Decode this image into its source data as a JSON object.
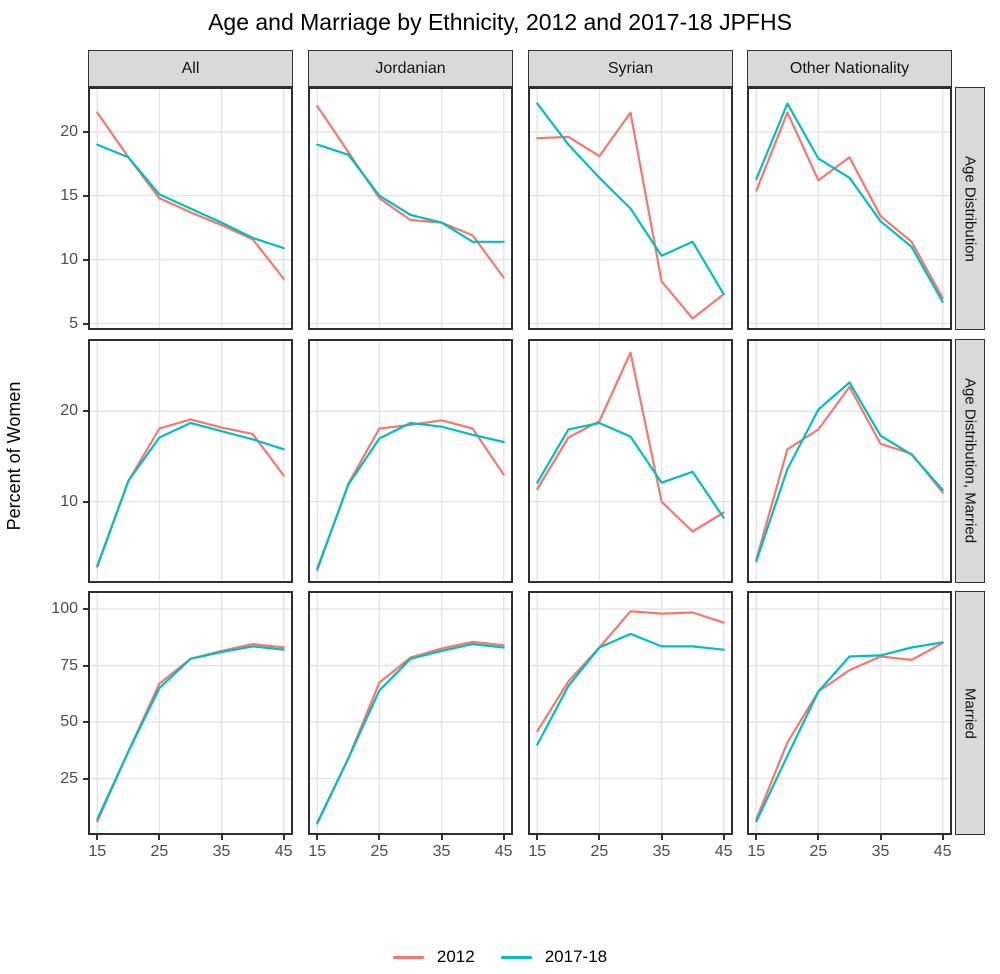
{
  "title": "Age and Marriage by Ethnicity, 2012 and 2017-18 JPFHS",
  "y_axis_label": "Percent of Women",
  "facets": {
    "columns": [
      "All",
      "Jordanian",
      "Syrian",
      "Other Nationality"
    ],
    "rows": [
      "Age Distribution",
      "Age Distribution, Married",
      "Married"
    ]
  },
  "legend": {
    "series": [
      {
        "label": "2012",
        "color": "#F8766D"
      },
      {
        "label": "2017-18",
        "color": "#00BFC4"
      }
    ]
  },
  "colors": {
    "grid": "#E4E4E4",
    "panel_border": "#2E2E2E",
    "strip_bg": "#D9D9D9",
    "tick_text": "#4D4D4D"
  },
  "chart_data": {
    "type": "line",
    "x": [
      15,
      20,
      25,
      30,
      35,
      40,
      45
    ],
    "x_ticks": [
      15,
      25,
      35,
      45
    ],
    "xlabel": "",
    "ylabel": "Percent of Women",
    "legend_position": "bottom",
    "rows": [
      {
        "facet": "Age Distribution",
        "ylim": [
          4.5,
          23.5
        ],
        "y_ticks": [
          5,
          10,
          15,
          20
        ],
        "panels": [
          {
            "column": "All",
            "series": [
              {
                "name": "2012",
                "values": [
                  21.5,
                  18.0,
                  14.8,
                  13.7,
                  12.7,
                  11.6,
                  8.5
                ]
              },
              {
                "name": "2017-18",
                "values": [
                  19.0,
                  18.0,
                  15.1,
                  14.0,
                  12.9,
                  11.7,
                  10.9
                ]
              }
            ]
          },
          {
            "column": "Jordanian",
            "series": [
              {
                "name": "2012",
                "values": [
                  22.0,
                  18.4,
                  14.8,
                  13.1,
                  12.9,
                  11.9,
                  8.6
                ]
              },
              {
                "name": "2017-18",
                "values": [
                  19.0,
                  18.2,
                  15.0,
                  13.5,
                  12.9,
                  11.4,
                  11.4
                ]
              }
            ]
          },
          {
            "column": "Syrian",
            "series": [
              {
                "name": "2012",
                "values": [
                  19.5,
                  19.6,
                  18.1,
                  21.5,
                  8.3,
                  5.4,
                  7.3
                ]
              },
              {
                "name": "2017-18",
                "values": [
                  22.2,
                  19.0,
                  16.4,
                  14.0,
                  10.3,
                  11.4,
                  7.3
                ]
              }
            ]
          },
          {
            "column": "Other Nationality",
            "series": [
              {
                "name": "2012",
                "values": [
                  15.4,
                  21.5,
                  16.2,
                  18.0,
                  13.4,
                  11.4,
                  7.0
                ]
              },
              {
                "name": "2017-18",
                "values": [
                  16.3,
                  22.2,
                  17.9,
                  16.4,
                  13.0,
                  11.0,
                  6.7
                ]
              }
            ]
          }
        ]
      },
      {
        "facet": "Age Distribution, Married",
        "ylim": [
          1,
          28
        ],
        "y_ticks": [
          10,
          20
        ],
        "panels": [
          {
            "column": "All",
            "series": [
              {
                "name": "2012",
                "values": [
                  2.8,
                  12.3,
                  18.1,
                  19.1,
                  18.2,
                  17.5,
                  12.9
                ]
              },
              {
                "name": "2017-18",
                "values": [
                  2.9,
                  12.3,
                  17.1,
                  18.7,
                  17.8,
                  16.9,
                  15.8
                ]
              }
            ]
          },
          {
            "column": "Jordanian",
            "series": [
              {
                "name": "2012",
                "values": [
                  2.4,
                  12.0,
                  18.1,
                  18.5,
                  19.0,
                  18.1,
                  13.0
                ]
              },
              {
                "name": "2017-18",
                "values": [
                  2.6,
                  11.9,
                  17.0,
                  18.7,
                  18.3,
                  17.4,
                  16.6
                ]
              }
            ]
          },
          {
            "column": "Syrian",
            "series": [
              {
                "name": "2012",
                "values": [
                  11.4,
                  17.1,
                  18.9,
                  26.5,
                  10.0,
                  6.7,
                  8.8
                ]
              },
              {
                "name": "2017-18",
                "values": [
                  12.1,
                  18.0,
                  18.7,
                  17.2,
                  12.1,
                  13.3,
                  8.2
                ]
              }
            ]
          },
          {
            "column": "Other Nationality",
            "series": [
              {
                "name": "2012",
                "values": [
                  3.6,
                  15.8,
                  18.0,
                  22.7,
                  16.4,
                  15.3,
                  11.0
                ]
              },
              {
                "name": "2017-18",
                "values": [
                  3.4,
                  13.6,
                  20.2,
                  23.2,
                  17.3,
                  15.2,
                  11.3
                ]
              }
            ]
          }
        ]
      },
      {
        "facet": "Married",
        "ylim": [
          0,
          108
        ],
        "y_ticks": [
          25,
          50,
          75,
          100
        ],
        "panels": [
          {
            "column": "All",
            "series": [
              {
                "name": "2012",
                "values": [
                  6,
                  37,
                  67,
                  78,
                  81.5,
                  84.5,
                  83
                ]
              },
              {
                "name": "2017-18",
                "values": [
                  7,
                  37,
                  65,
                  78,
                  81,
                  83.5,
                  82
                ]
              }
            ]
          },
          {
            "column": "Jordanian",
            "series": [
              {
                "name": "2012",
                "values": [
                  5,
                  34,
                  67.5,
                  78.5,
                  82.5,
                  85.5,
                  84
                ]
              },
              {
                "name": "2017-18",
                "values": [
                  5.5,
                  34,
                  64,
                  78,
                  81.5,
                  84.5,
                  83
                ]
              }
            ]
          },
          {
            "column": "Syrian",
            "series": [
              {
                "name": "2012",
                "values": [
                  46,
                  68,
                  83,
                  99,
                  98,
                  98.5,
                  94
                ]
              },
              {
                "name": "2017-18",
                "values": [
                  40,
                  66,
                  83,
                  89,
                  83.5,
                  83.5,
                  82
                ]
              }
            ]
          },
          {
            "column": "Other Nationality",
            "series": [
              {
                "name": "2012",
                "values": [
                  7,
                  41,
                  63.5,
                  73,
                  79,
                  77.5,
                  85
                ]
              },
              {
                "name": "2017-18",
                "values": [
                  6,
                  35,
                  63.5,
                  79,
                  79.5,
                  83,
                  85.3
                ]
              }
            ]
          }
        ]
      }
    ]
  }
}
